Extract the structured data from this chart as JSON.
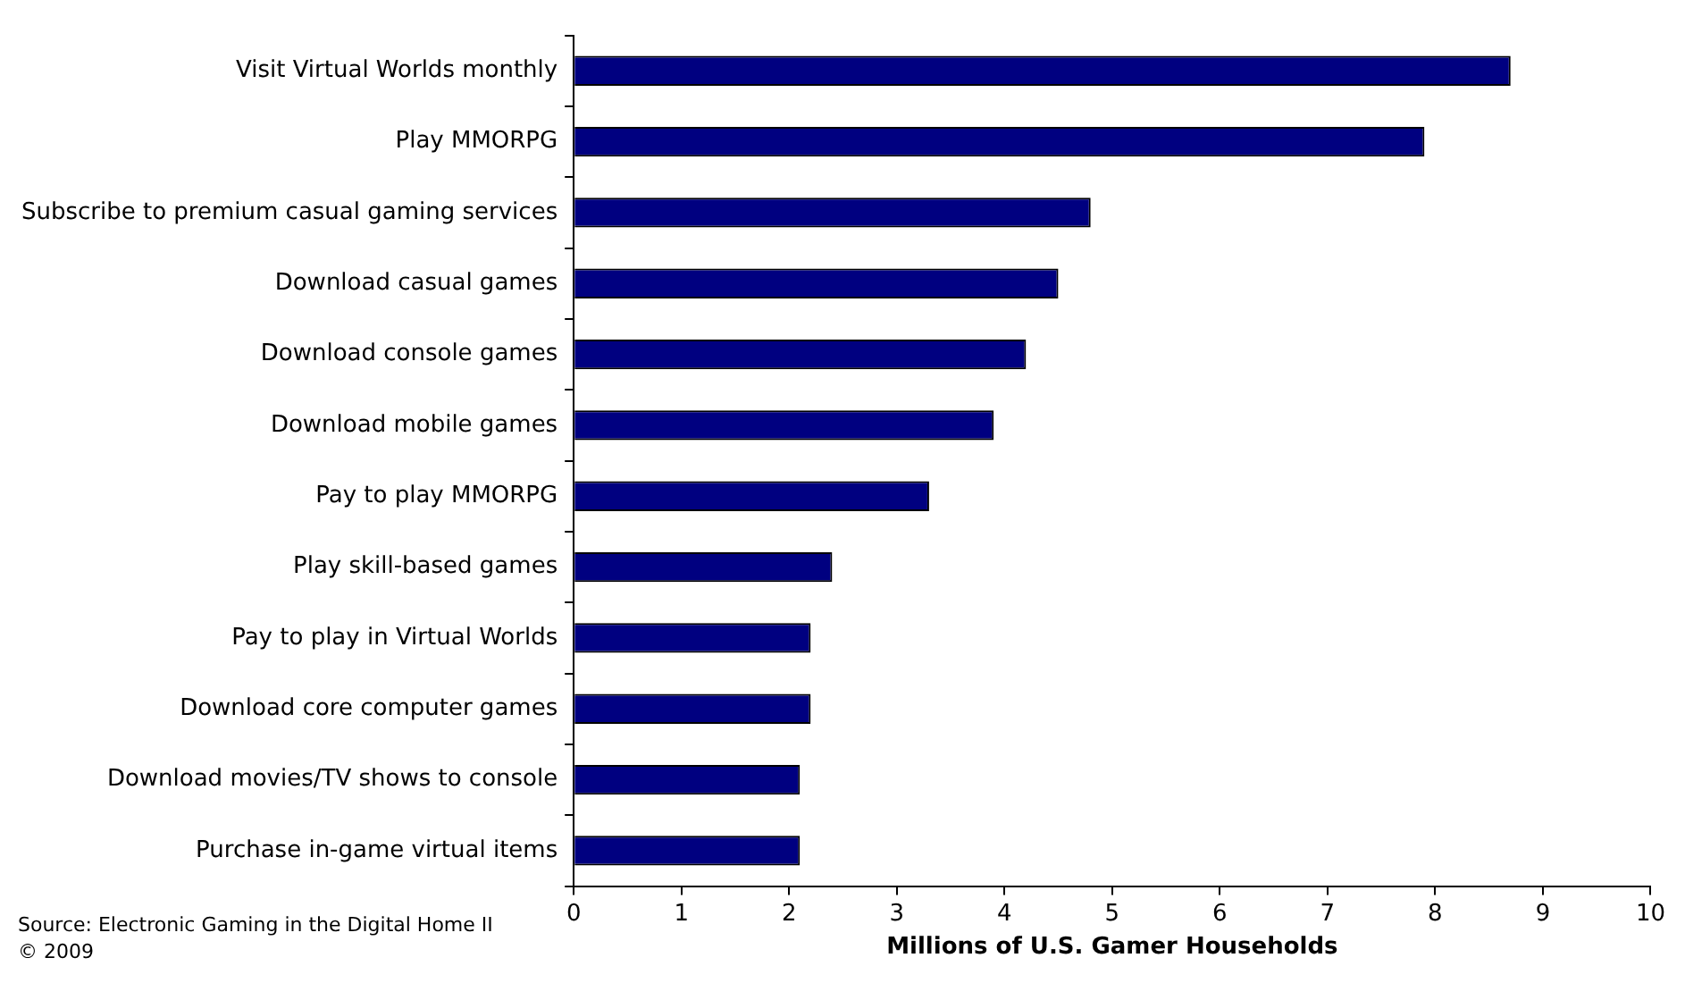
{
  "chart_data": {
    "type": "bar",
    "orientation": "horizontal",
    "categories": [
      "Visit Virtual Worlds monthly",
      "Play MMORPG",
      "Subscribe to premium casual gaming services",
      "Download casual games",
      "Download console games",
      "Download mobile games",
      "Pay to play MMORPG",
      "Play skill-based games",
      "Pay to play in Virtual Worlds",
      "Download core computer games",
      "Download movies/TV shows to console",
      "Purchase in-game virtual items"
    ],
    "values": [
      8.7,
      7.9,
      4.8,
      4.5,
      4.2,
      3.9,
      3.3,
      2.4,
      2.2,
      2.2,
      2.1,
      2.1
    ],
    "color": "#000080",
    "xlabel": "Millions of U.S. Gamer Households",
    "xlim": [
      0,
      10
    ],
    "xticks": [
      0,
      1,
      2,
      3,
      4,
      5,
      6,
      7,
      8,
      9,
      10
    ],
    "annotations": [
      "Source: Electronic Gaming in the Digital Home II",
      "© 2009"
    ]
  }
}
